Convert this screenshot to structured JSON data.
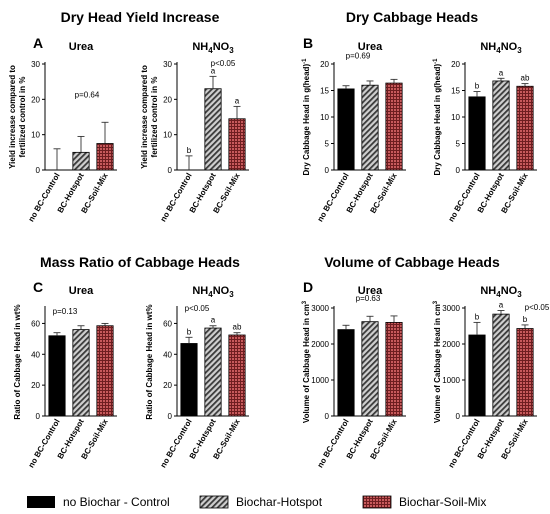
{
  "colors": {
    "control": "#000000",
    "hotspot": "#a6a6a6",
    "soilmix": "#c0484b",
    "axis": "#000000"
  },
  "sections": [
    {
      "title": "Dry Head Yield Increase",
      "letter": "A"
    },
    {
      "title": "Dry Cabbage Heads",
      "letter": "B"
    },
    {
      "title": "Mass Ratio of Cabbage Heads",
      "letter": "C"
    },
    {
      "title": "Volume of Cabbage Heads",
      "letter": "D"
    }
  ],
  "legend": [
    {
      "label": "no Biochar - Control",
      "pattern": "solid"
    },
    {
      "label": "Biochar-Hotspot",
      "pattern": "hatch"
    },
    {
      "label": "Biochar-Soil-Mix",
      "pattern": "grid"
    }
  ],
  "chart_data": [
    {
      "type": "bar",
      "section": "A",
      "title": "Urea",
      "ylabel": "Yield increase compared to fertilized control in %",
      "categories": [
        "no BC-Control",
        "BC-Hotspot",
        "BC-Soil-Mix"
      ],
      "values": [
        0,
        5,
        7.5
      ],
      "errors": [
        6,
        4.5,
        6
      ],
      "ylim": [
        0,
        30
      ],
      "yticks": [
        0,
        10,
        20,
        30
      ],
      "pvalue": "p=0.64",
      "letters": [
        "",
        "",
        ""
      ]
    },
    {
      "type": "bar",
      "section": "A",
      "title": "NH4NO3",
      "ylabel": "Yield increase compared to fertilized control in %",
      "categories": [
        "no BC-Control",
        "BC-Hotspot",
        "BC-Soil-Mix"
      ],
      "values": [
        0,
        23,
        14.5
      ],
      "errors": [
        4,
        3.5,
        3.5
      ],
      "ylim": [
        0,
        30
      ],
      "yticks": [
        0,
        10,
        20,
        30
      ],
      "pvalue": "p<0.05",
      "letters": [
        "b",
        "a",
        "a"
      ]
    },
    {
      "type": "bar",
      "section": "B",
      "title": "Urea",
      "ylabel": "Dry Cabbage Head in g(head)-1",
      "categories": [
        "no BC-Control",
        "BC-Hotspot",
        "BC-Soil-Mix"
      ],
      "values": [
        15.3,
        16.0,
        16.4
      ],
      "errors": [
        0.6,
        0.8,
        0.7
      ],
      "ylim": [
        0,
        20
      ],
      "yticks": [
        0,
        5,
        10,
        15,
        20
      ],
      "pvalue": "p=0.69",
      "letters": [
        "",
        "",
        ""
      ]
    },
    {
      "type": "bar",
      "section": "B",
      "title": "NH4NO3",
      "ylabel": "Dry Cabbage Head in g(head)-1",
      "categories": [
        "no BC-Control",
        "BC-Hotspot",
        "BC-Soil-Mix"
      ],
      "values": [
        13.8,
        16.8,
        15.8
      ],
      "errors": [
        1.0,
        0.5,
        0.5
      ],
      "ylim": [
        0,
        20
      ],
      "yticks": [
        0,
        5,
        10,
        15,
        20
      ],
      "pvalue": "",
      "letters": [
        "b",
        "a",
        "ab"
      ]
    },
    {
      "type": "bar",
      "section": "C",
      "title": "Urea",
      "ylabel": "Ratio of Cabbage Head in wt%",
      "categories": [
        "no BC-Control",
        "BC-Hotspot",
        "BC-Soil-Mix"
      ],
      "values": [
        52,
        56,
        58.5
      ],
      "errors": [
        2,
        2.5,
        1.5
      ],
      "ylim": [
        0,
        70
      ],
      "yticks": [
        0,
        20,
        40,
        60
      ],
      "pvalue": "p=0.13",
      "letters": [
        "",
        "",
        ""
      ]
    },
    {
      "type": "bar",
      "section": "C",
      "title": "NH4NO3",
      "ylabel": "Ratio of Cabbage Head in wt%",
      "categories": [
        "no BC-Control",
        "BC-Hotspot",
        "BC-Soil-Mix"
      ],
      "values": [
        47,
        57,
        52.5
      ],
      "errors": [
        4,
        1.5,
        1.5
      ],
      "ylim": [
        0,
        70
      ],
      "yticks": [
        0,
        20,
        40,
        60
      ],
      "pvalue": "p<0.05",
      "letters": [
        "b",
        "a",
        "ab"
      ]
    },
    {
      "type": "bar",
      "section": "D",
      "title": "Urea",
      "ylabel": "Volume of Cabbage Head in cm3",
      "categories": [
        "no BC-Control",
        "BC-Hotspot",
        "BC-Soil-Mix"
      ],
      "values": [
        2400,
        2620,
        2600
      ],
      "errors": [
        120,
        150,
        180
      ],
      "ylim": [
        0,
        3000
      ],
      "yticks": [
        0,
        1000,
        2000,
        3000
      ],
      "pvalue": "p=0.63",
      "letters": [
        "",
        "",
        ""
      ]
    },
    {
      "type": "bar",
      "section": "D",
      "title": "NH4NO3",
      "ylabel": "Volume of Cabbage Head in cm3",
      "categories": [
        "no BC-Control",
        "BC-Hotspot",
        "BC-Soil-Mix"
      ],
      "values": [
        2250,
        2830,
        2430
      ],
      "errors": [
        350,
        100,
        100
      ],
      "ylim": [
        0,
        3000
      ],
      "yticks": [
        0,
        1000,
        2000,
        3000
      ],
      "pvalue": "p<0.05",
      "letters": [
        "b",
        "a",
        "b"
      ]
    }
  ]
}
